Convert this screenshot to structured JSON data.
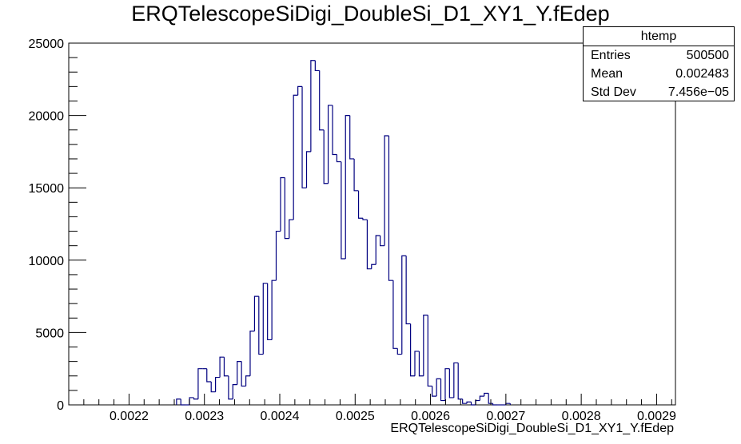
{
  "chart_data": {
    "type": "bar",
    "title": "ERQTelescopeSiDigi_DoubleSi_D1_XY1_Y.fEdep",
    "xlabel": "ERQTelescopeSiDigi_DoubleSi_D1_XY1_Y.fEdep",
    "ylabel": "",
    "xlim": [
      0.00212,
      0.002925
    ],
    "ylim": [
      0,
      25000
    ],
    "bin_width": 5.75e-06,
    "x_ticks": [
      "0.0022",
      "0.0023",
      "0.0024",
      "0.0025",
      "0.0026",
      "0.0027",
      "0.0028",
      "0.0029"
    ],
    "x_tick_values": [
      0.0022,
      0.0023,
      0.0024,
      0.0025,
      0.0026,
      0.0027,
      0.0028,
      0.0029
    ],
    "y_ticks": [
      "0",
      "5000",
      "10000",
      "15000",
      "20000",
      "25000"
    ],
    "y_tick_values": [
      0,
      5000,
      10000,
      15000,
      20000,
      25000
    ],
    "grid": false,
    "line_color": "#000080",
    "series": [
      {
        "x": [
          0.0022659,
          0.0022716,
          0.0022774,
          0.0022831,
          0.0022889,
          0.0022946,
          0.0023004,
          0.0023061,
          0.0023119,
          0.0023176,
          0.0023234,
          0.0023291,
          0.0023349,
          0.0023406,
          0.0023464,
          0.0023521,
          0.0023579,
          0.0023636,
          0.0023694,
          0.0023751,
          0.0023809,
          0.0023866,
          0.0023924,
          0.0023981,
          0.0024039,
          0.0024096,
          0.0024154,
          0.0024211,
          0.0024269,
          0.0024326,
          0.0024384,
          0.0024441,
          0.0024499,
          0.0024556,
          0.0024614,
          0.0024671,
          0.0024729,
          0.0024786,
          0.0024844,
          0.0024901,
          0.0024959,
          0.0025016,
          0.0025074,
          0.0025131,
          0.0025189,
          0.0025246,
          0.0025304,
          0.0025361,
          0.0025419,
          0.0025476,
          0.0025534,
          0.0025591,
          0.0025649,
          0.0025706,
          0.0025764,
          0.0025821,
          0.0025879,
          0.0025936,
          0.0025994,
          0.0026051,
          0.0026109,
          0.0026166,
          0.0026224,
          0.0026281,
          0.0026339,
          0.0026396,
          0.0026454,
          0.0026511,
          0.0026569,
          0.0026626,
          0.0026684,
          0.0026741,
          0.0026799,
          0.0026856,
          0.0026914,
          0.0026971,
          0.0027029
        ],
        "values": [
          400,
          0,
          0,
          500,
          400,
          2500,
          2500,
          1600,
          900,
          1900,
          3300,
          2000,
          400,
          1400,
          3000,
          1300,
          2000,
          5100,
          7500,
          3500,
          8400,
          4500,
          8600,
          12000,
          15700,
          11500,
          12800,
          21400,
          22000,
          15000,
          17500,
          23800,
          23100,
          19000,
          15300,
          20700,
          17300,
          16800,
          10100,
          20000,
          17000,
          14800,
          12900,
          12800,
          9400,
          9700,
          11700,
          11000,
          18600,
          8600,
          3900,
          3500,
          10300,
          5600,
          2000,
          3700,
          2000,
          6200,
          1300,
          600,
          1800,
          300,
          2500,
          500,
          2900,
          400,
          100,
          200,
          0,
          300,
          600,
          800,
          100,
          0,
          0,
          0,
          100
        ]
      }
    ]
  },
  "stats_box": {
    "name": "htemp",
    "rows": [
      {
        "label": "Entries",
        "value": "500500"
      },
      {
        "label": "Mean",
        "value": "0.002483"
      },
      {
        "label": "Std Dev",
        "value": "7.456e−05"
      }
    ]
  }
}
